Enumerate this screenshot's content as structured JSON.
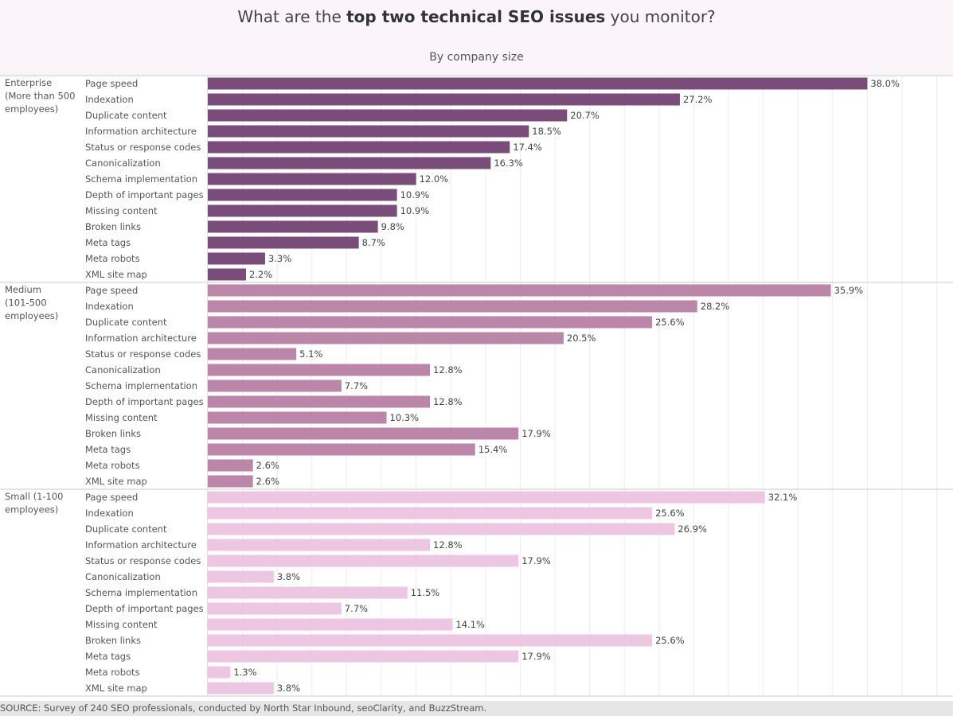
{
  "header": {
    "title_pre": "What are the ",
    "title_bold": "top two technical SEO issues",
    "title_post": " you monitor?",
    "subtitle": "By company size"
  },
  "footer": {
    "source": "SOURCE:  Survey of 240 SEO professionals, conducted by North Star Inbound, seoClarity, and BuzzStream."
  },
  "chart_data": {
    "type": "bar",
    "orientation": "horizontal",
    "xlim": [
      0,
      52
    ],
    "value_suffix": "%",
    "grid": true,
    "categories": [
      "Page speed",
      "Indexation",
      "Duplicate content",
      "Information architecture",
      "Status or response codes",
      "Canonicalization",
      "Schema implementation",
      "Depth of important pages",
      "Missing content",
      "Broken links",
      "Meta tags",
      "Meta robots",
      "XML site map"
    ],
    "groups": [
      {
        "name_lines": [
          "Enterprise",
          "(More than 500",
          "employees)"
        ],
        "color": "#7a4c7a",
        "values": [
          38.0,
          27.2,
          20.7,
          18.5,
          17.4,
          16.3,
          12.0,
          10.9,
          10.9,
          9.8,
          8.7,
          3.3,
          2.2
        ]
      },
      {
        "name_lines": [
          "Medium",
          "(101-500",
          "employees)"
        ],
        "color": "#bb86a8",
        "values": [
          35.9,
          28.2,
          25.6,
          20.5,
          5.1,
          12.8,
          7.7,
          12.8,
          10.3,
          17.9,
          15.4,
          2.6,
          2.6
        ]
      },
      {
        "name_lines": [
          "Small (1-100",
          "employees)"
        ],
        "color": "#edc6e2",
        "values": [
          32.1,
          25.6,
          26.9,
          12.8,
          17.9,
          3.8,
          11.5,
          7.7,
          14.1,
          25.6,
          17.9,
          1.3,
          3.8
        ]
      }
    ]
  }
}
